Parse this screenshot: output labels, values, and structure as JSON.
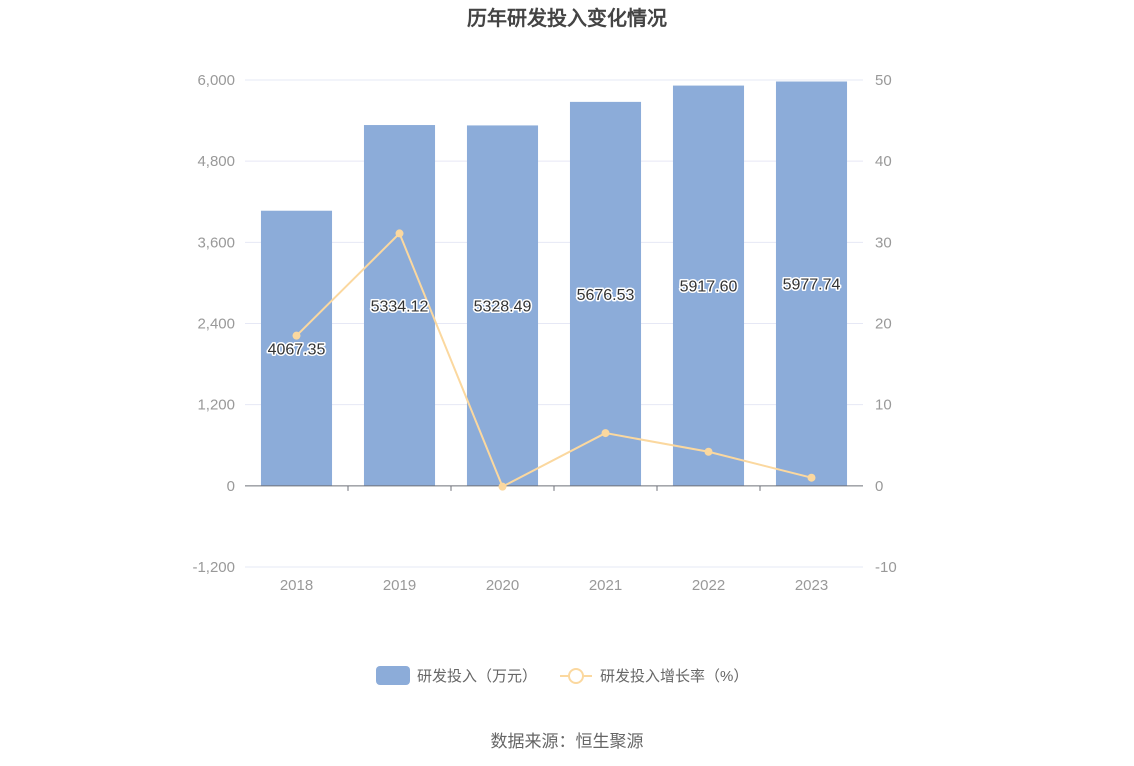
{
  "chart_data": {
    "type": "bar",
    "title": "历年研发投入变化情况",
    "categories": [
      "2018",
      "2019",
      "2020",
      "2021",
      "2022",
      "2023"
    ],
    "series": [
      {
        "name": "研发投入（万元）",
        "type": "bar",
        "axis": "left",
        "values": [
          4067.35,
          5334.12,
          5328.49,
          5676.53,
          5917.6,
          5977.74
        ],
        "labels": [
          "4067.35",
          "5334.12",
          "5328.49",
          "5676.53",
          "5917.60",
          "5977.74"
        ],
        "color": "#8cacd9"
      },
      {
        "name": "研发投入增长率（%）",
        "type": "line",
        "axis": "right",
        "values": [
          18.5,
          31.1,
          -0.1,
          6.5,
          4.2,
          1.0
        ],
        "color": "#fbd89f"
      }
    ],
    "left_axis": {
      "ylim": [
        -1200,
        6000
      ],
      "ticks": [
        -1200,
        0,
        1200,
        2400,
        3600,
        4800,
        6000
      ],
      "tick_labels": [
        "-1,200",
        "0",
        "1,200",
        "2,400",
        "3,600",
        "4,800",
        "6,000"
      ]
    },
    "right_axis": {
      "ylim": [
        -10,
        50
      ],
      "ticks": [
        -10,
        0,
        10,
        20,
        30,
        40,
        50
      ],
      "tick_labels": [
        "-10",
        "0",
        "10",
        "20",
        "30",
        "40",
        "50"
      ]
    },
    "grid": true,
    "legend_position": "bottom-center"
  },
  "source": "数据来源：恒生聚源",
  "colors": {
    "bar": "#8cacd9",
    "line": "#fbd89f",
    "grid": "#e6e8f5",
    "axis_text": "#999999",
    "title": "#444444"
  }
}
